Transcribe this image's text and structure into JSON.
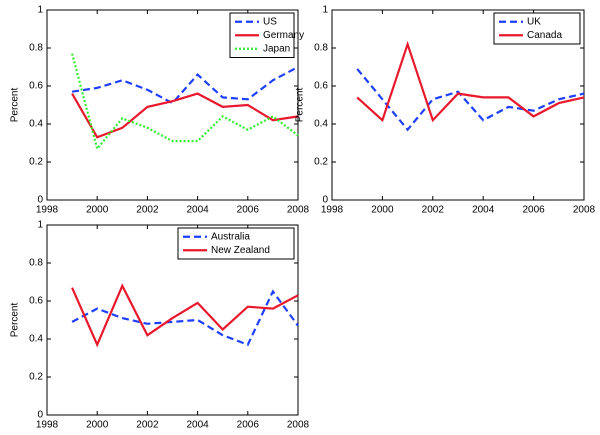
{
  "chart_data": [
    {
      "type": "line",
      "ylabel": "Percent",
      "legend": "upper right",
      "x": [
        1999,
        2000,
        2001,
        2002,
        2003,
        2004,
        2005,
        2006,
        2007,
        2008
      ],
      "xlim": [
        1998,
        2008
      ],
      "xticks": [
        1998,
        2000,
        2002,
        2004,
        2006,
        2008
      ],
      "ylim": [
        0,
        1
      ],
      "yticks": [
        0,
        0.2,
        0.4,
        0.6,
        0.8,
        1
      ],
      "series": [
        {
          "name": "US",
          "color": "#1f3fff",
          "style": "dashed",
          "values": [
            0.57,
            0.59,
            0.63,
            0.58,
            0.51,
            0.66,
            0.54,
            0.53,
            0.63,
            0.7
          ]
        },
        {
          "name": "Germany",
          "color": "#e8192c",
          "style": "solid",
          "values": [
            0.56,
            0.33,
            0.38,
            0.49,
            0.52,
            0.56,
            0.49,
            0.5,
            0.42,
            0.44
          ]
        },
        {
          "name": "Japan",
          "color": "#33ee33",
          "style": "dotted",
          "values": [
            0.77,
            0.27,
            0.43,
            0.38,
            0.31,
            0.31,
            0.44,
            0.37,
            0.44,
            0.34
          ]
        }
      ]
    },
    {
      "type": "line",
      "ylabel": "Percent",
      "legend": "upper right",
      "x": [
        1999,
        2000,
        2001,
        2002,
        2003,
        2004,
        2005,
        2006,
        2007,
        2008
      ],
      "xlim": [
        1998,
        2008
      ],
      "xticks": [
        1998,
        2000,
        2002,
        2004,
        2006,
        2008
      ],
      "ylim": [
        0,
        1
      ],
      "yticks": [
        0,
        0.2,
        0.4,
        0.6,
        0.8,
        1
      ],
      "series": [
        {
          "name": "UK",
          "color": "#1f3fff",
          "style": "dashed",
          "values": [
            0.69,
            0.53,
            0.37,
            0.53,
            0.57,
            0.42,
            0.49,
            0.47,
            0.53,
            0.56
          ]
        },
        {
          "name": "Canada",
          "color": "#e8192c",
          "style": "solid",
          "values": [
            0.54,
            0.42,
            0.82,
            0.42,
            0.56,
            0.54,
            0.54,
            0.44,
            0.51,
            0.54
          ]
        }
      ]
    },
    {
      "type": "line",
      "ylabel": "Percent",
      "legend": "upper right",
      "x": [
        1999,
        2000,
        2001,
        2002,
        2003,
        2004,
        2005,
        2006,
        2007,
        2008
      ],
      "xlim": [
        1998,
        2008
      ],
      "xticks": [
        1998,
        2000,
        2002,
        2004,
        2006,
        2008
      ],
      "ylim": [
        0,
        1
      ],
      "yticks": [
        0,
        0.2,
        0.4,
        0.6,
        0.8,
        1
      ],
      "series": [
        {
          "name": "Australia",
          "color": "#1f3fff",
          "style": "dashed",
          "values": [
            0.49,
            0.56,
            0.51,
            0.48,
            0.49,
            0.5,
            0.42,
            0.37,
            0.65,
            0.47
          ]
        },
        {
          "name": "New Zealand",
          "color": "#e8192c",
          "style": "solid",
          "values": [
            0.67,
            0.37,
            0.68,
            0.42,
            0.51,
            0.59,
            0.45,
            0.57,
            0.56,
            0.63
          ]
        }
      ]
    }
  ]
}
